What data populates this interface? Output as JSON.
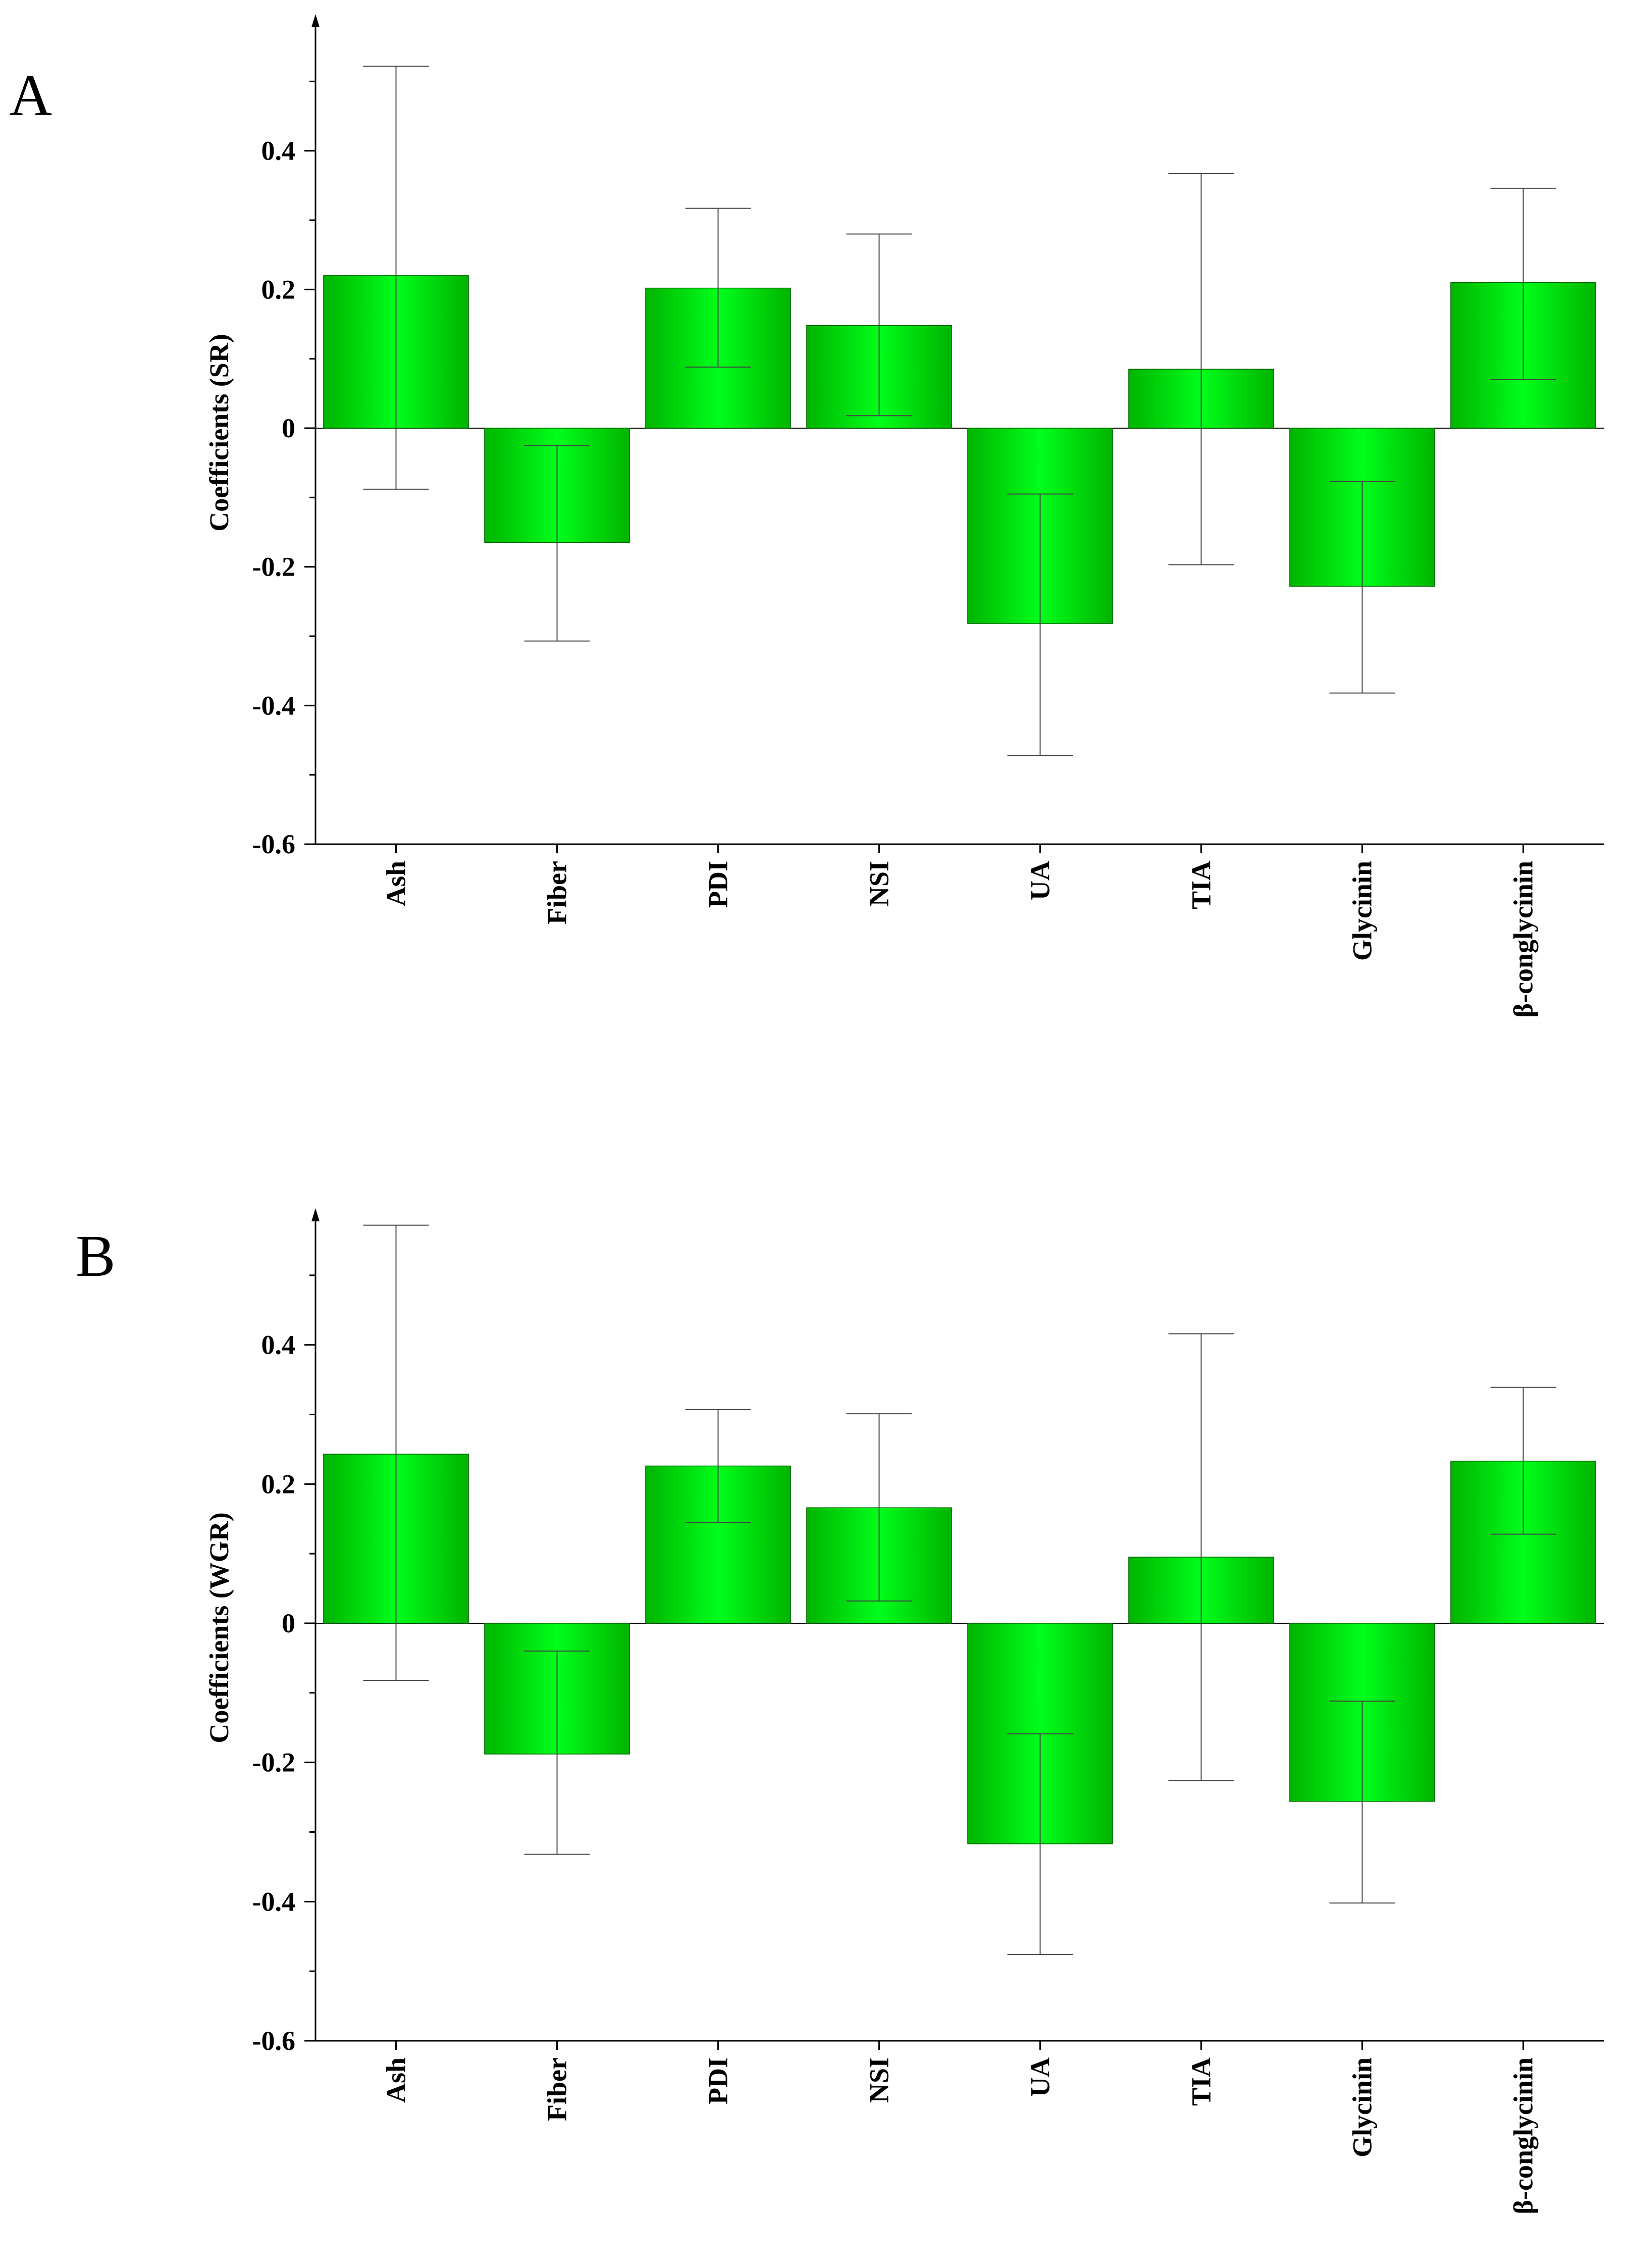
{
  "chart_data": [
    {
      "panel_label": "A",
      "type": "bar",
      "ylabel": "Coefficients (SR)",
      "ylim": [
        -0.6,
        0.6
      ],
      "yticks": [
        -0.6,
        -0.4,
        -0.2,
        0,
        0.2,
        0.4
      ],
      "ytick_labels": [
        "-0.6",
        "-0.4",
        "-0.2",
        "0",
        "0.2",
        "0.4"
      ],
      "categories": [
        "Ash",
        "Fiber",
        "PDI",
        "NSI",
        "UA",
        "TIA",
        "Glycinin",
        "β-conglycinin"
      ],
      "values": [
        0.22,
        -0.165,
        0.202,
        0.148,
        -0.282,
        0.085,
        -0.228,
        0.21
      ],
      "error_low": [
        -0.088,
        -0.307,
        0.088,
        0.018,
        -0.472,
        -0.197,
        -0.382,
        0.07
      ],
      "error_high": [
        0.522,
        -0.025,
        0.317,
        0.28,
        -0.095,
        0.367,
        -0.077,
        0.346
      ],
      "bar_color": "#00dd00",
      "grid": false
    },
    {
      "panel_label": "B",
      "type": "bar",
      "ylabel": "Coefficients (WGR)",
      "ylim": [
        -0.6,
        0.6
      ],
      "yticks": [
        -0.6,
        -0.4,
        -0.2,
        0,
        0.2,
        0.4
      ],
      "ytick_labels": [
        "-0.6",
        "-0.4",
        "-0.2",
        "0",
        "0.2",
        "0.4"
      ],
      "categories": [
        "Ash",
        "Fiber",
        "PDI",
        "NSI",
        "UA",
        "TIA",
        "Glycinin",
        "β-conglycinin"
      ],
      "values": [
        0.243,
        -0.188,
        0.226,
        0.166,
        -0.317,
        0.095,
        -0.256,
        0.233
      ],
      "error_low": [
        -0.082,
        -0.332,
        0.145,
        0.032,
        -0.476,
        -0.226,
        -0.402,
        0.128
      ],
      "error_high": [
        0.572,
        -0.04,
        0.307,
        0.301,
        -0.159,
        0.416,
        -0.112,
        0.339
      ],
      "bar_color": "#00dd00",
      "grid": false
    }
  ]
}
